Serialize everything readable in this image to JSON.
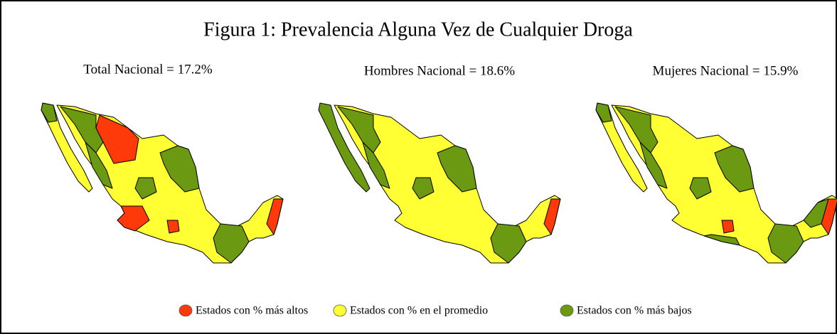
{
  "figure": {
    "title": "Figura 1: Prevalencia Alguna Vez de Cualquier Droga",
    "panels": [
      {
        "label": "Total Nacional = 17.2%"
      },
      {
        "label": "Hombres Nacional = 18.6%"
      },
      {
        "label": "Mujeres Nacional = 15.9%"
      }
    ],
    "legend": [
      {
        "label": "Estados con % más altos",
        "color": "#ff3a0a"
      },
      {
        "label": "Estados con % en el promedio",
        "color": "#ffff33"
      },
      {
        "label": "Estados con % más bajos",
        "color": "#6b9a12"
      }
    ]
  }
}
